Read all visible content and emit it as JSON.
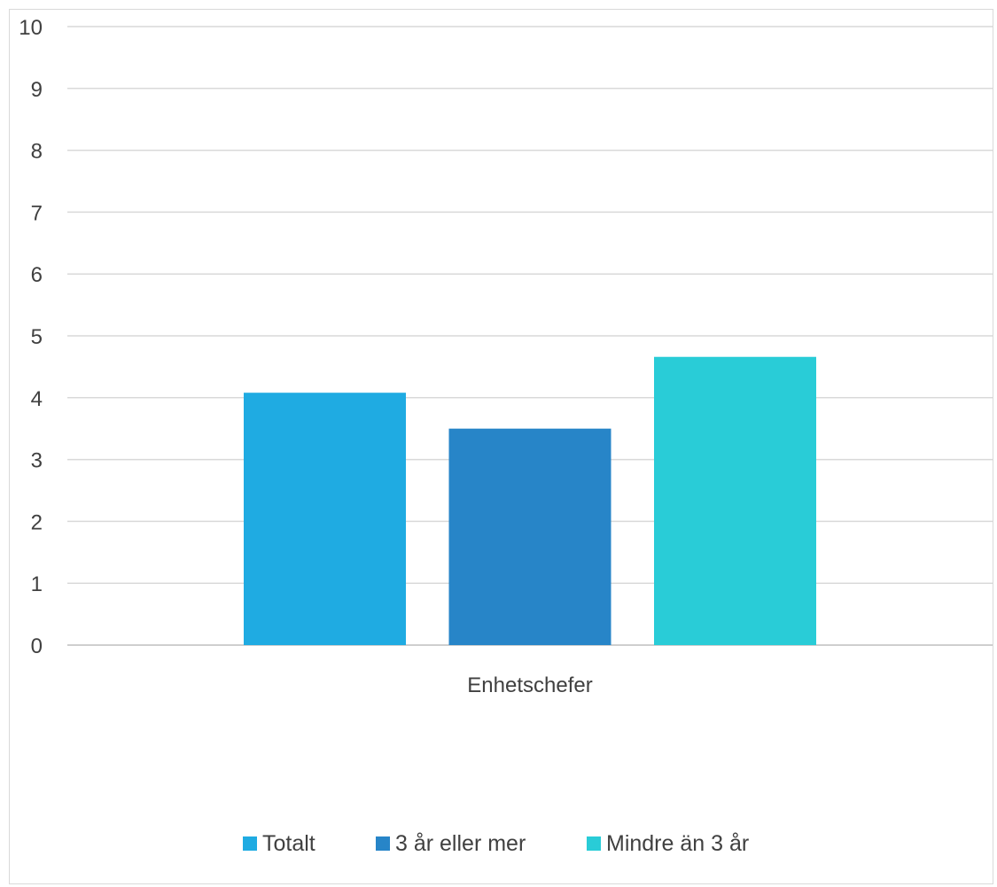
{
  "chart_data": {
    "type": "bar",
    "categories": [
      "Enhetschefer"
    ],
    "series": [
      {
        "name": "Totalt",
        "values": [
          4.08
        ],
        "color": "#1fabe2"
      },
      {
        "name": "3 år eller mer",
        "values": [
          3.5
        ],
        "color": "#2785c8"
      },
      {
        "name": "Mindre än 3 år",
        "values": [
          4.66
        ],
        "color": "#29ccd7"
      }
    ],
    "ylim": [
      0,
      10
    ],
    "yticks": [
      "0",
      "1",
      "2",
      "3",
      "4",
      "5",
      "6",
      "7",
      "8",
      "9",
      "10"
    ],
    "grid": true,
    "legend_position": "bottom",
    "title": "",
    "xlabel": "",
    "ylabel": ""
  }
}
